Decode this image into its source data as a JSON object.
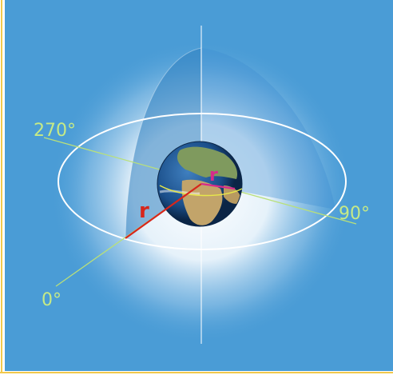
{
  "labels": {
    "angle_270": "270°",
    "angle_90": "90°",
    "angle_0": "0°",
    "radius_outer": "r",
    "radius_inner": "r"
  },
  "colors": {
    "background": "#4a9cd6",
    "frame_border": "#f2c94c",
    "axis_line": "#b9e07a",
    "label_text": "#c6ea86",
    "ellipse": "#ffffff",
    "radius_outer": "#d7261b",
    "radius_inner": "#d62a8c",
    "globe_ocean": "#1b4f8a",
    "globe_land": "#c2a46a"
  }
}
